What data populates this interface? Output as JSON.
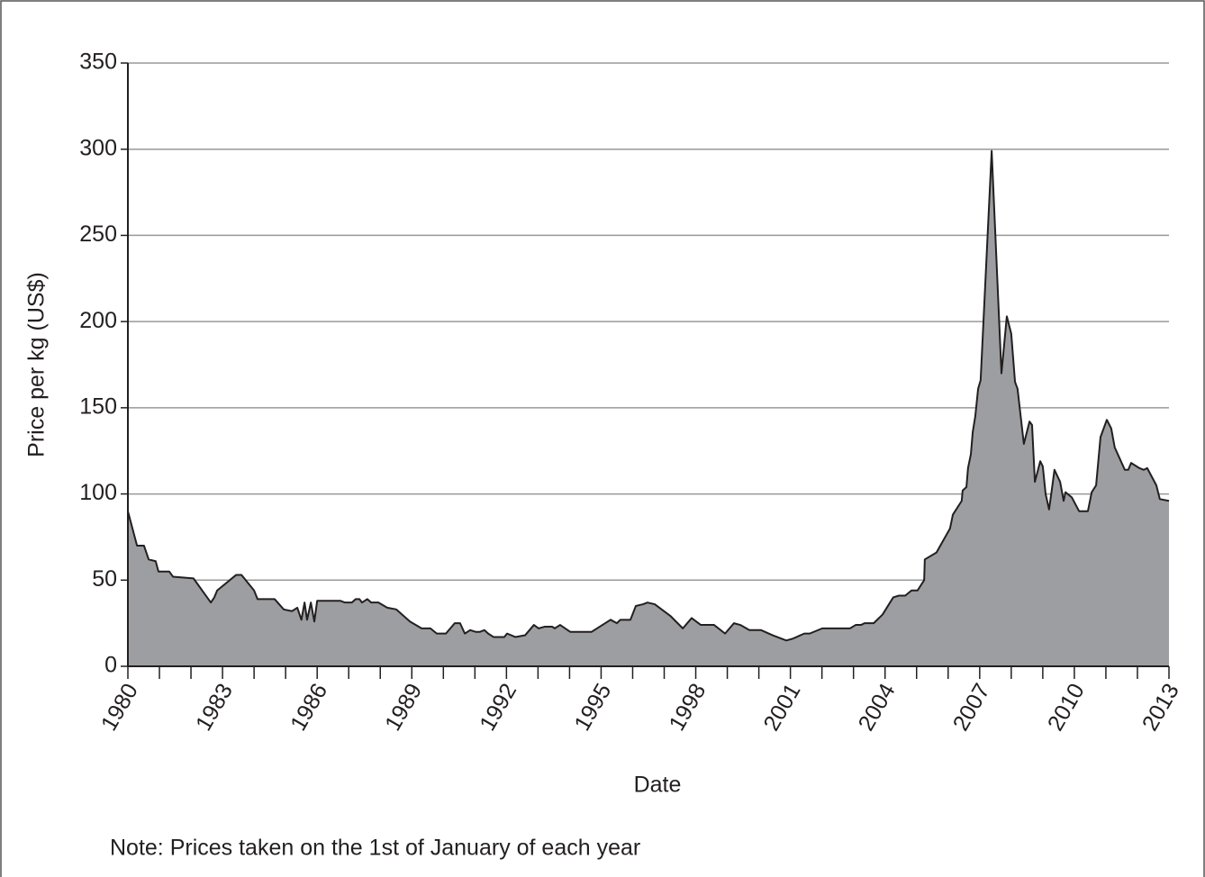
{
  "chart_data": {
    "type": "area",
    "ylabel": "Price per kg (US$)",
    "xlabel": "Date",
    "note": "Note: Prices taken on the 1st of January of each year",
    "x": [
      1980,
      1980.29,
      1980.51,
      1980.66,
      1980.88,
      1980.97,
      1981.31,
      1981.43,
      1982.08,
      1982.63,
      1982.74,
      1982.83,
      1983.43,
      1983.6,
      1984.0,
      1984.11,
      1984.23,
      1984.65,
      1984.94,
      1985.2,
      1985.37,
      1985.5,
      1985.6,
      1985.68,
      1985.8,
      1985.91,
      1986.0,
      1986.74,
      1986.88,
      1987.1,
      1987.22,
      1987.34,
      1987.42,
      1987.59,
      1987.71,
      1987.94,
      1988.22,
      1988.51,
      1988.94,
      1989.31,
      1989.59,
      1989.79,
      1990.08,
      1990.36,
      1990.53,
      1990.68,
      1990.85,
      1991.02,
      1991.16,
      1991.3,
      1991.42,
      1991.59,
      1991.93,
      1992.02,
      1992.28,
      1992.59,
      1992.87,
      1993.02,
      1993.22,
      1993.45,
      1993.53,
      1993.7,
      1994.02,
      1994.7,
      1995.3,
      1995.5,
      1995.61,
      1995.93,
      1996.1,
      1996.33,
      1996.47,
      1996.7,
      1997.21,
      1997.59,
      1997.87,
      1998.16,
      1998.58,
      1998.93,
      1999.21,
      1999.41,
      1999.7,
      2000.07,
      2000.44,
      2000.87,
      2001.07,
      2001.44,
      2001.61,
      2002.01,
      2002.89,
      2003.07,
      2003.24,
      2003.35,
      2003.64,
      2003.92,
      2004.26,
      2004.44,
      2004.64,
      2004.84,
      2005.03,
      2005.24,
      2005.26,
      2005.63,
      2006.06,
      2006.15,
      2006.43,
      2006.46,
      2006.58,
      2006.63,
      2006.72,
      2006.78,
      2006.86,
      2006.95,
      2007.03,
      2007.38,
      2007.69,
      2007.86,
      2008.0,
      2008.12,
      2008.2,
      2008.4,
      2008.58,
      2008.66,
      2008.75,
      2008.92,
      2009.0,
      2009.09,
      2009.2,
      2009.29,
      2009.37,
      2009.55,
      2009.66,
      2009.72,
      2009.92,
      2010.15,
      2010.43,
      2010.55,
      2010.69,
      2010.83,
      2011.03,
      2011.17,
      2011.28,
      2011.6,
      2011.71,
      2011.8,
      2012.06,
      2012.2,
      2012.31,
      2012.6,
      2012.71,
      2013.0
    ],
    "values": [
      90,
      70,
      70,
      62,
      61,
      55,
      55,
      52,
      51,
      37,
      40,
      44,
      53,
      53,
      44,
      39,
      39,
      39,
      33,
      32,
      34,
      27,
      37,
      27,
      37,
      26,
      38,
      38,
      37,
      37,
      39,
      39,
      37,
      39,
      37,
      37,
      34,
      33,
      26,
      22,
      22,
      19,
      19,
      25,
      25,
      19,
      21,
      20,
      20,
      21,
      19,
      17,
      17,
      19,
      17,
      18,
      24,
      22,
      23,
      23,
      22,
      24,
      20,
      20,
      27,
      25,
      27,
      27,
      35,
      36,
      37,
      36,
      29,
      22,
      28,
      24,
      24,
      19,
      25,
      24,
      21,
      21,
      18,
      15,
      16,
      19,
      19,
      22,
      22,
      24,
      24,
      25,
      25,
      30,
      40,
      41,
      41,
      44,
      44,
      50,
      62,
      66,
      80,
      88,
      96,
      102,
      104,
      115,
      123,
      136,
      145,
      161,
      166,
      299,
      170,
      203,
      193,
      165,
      161,
      129,
      142,
      140,
      107,
      119,
      116,
      100,
      91,
      103,
      114,
      107,
      96,
      101,
      98,
      90,
      90,
      101,
      105,
      133,
      143,
      138,
      127,
      114,
      114,
      118,
      115,
      114,
      115,
      105,
      97,
      96
    ],
    "color": "#9d9ea1",
    "xlim": [
      1980,
      2013
    ],
    "ylim": [
      0,
      350
    ],
    "xticks": [
      1980,
      1983,
      1986,
      1989,
      1992,
      1995,
      1998,
      2001,
      2004,
      2007,
      2010,
      2013
    ],
    "x_minor_ticks": [
      1981,
      1982,
      1984,
      1985,
      1987,
      1988,
      1990,
      1991,
      1993,
      1994,
      1996,
      1997,
      1999,
      2000,
      2002,
      2003,
      2005,
      2006,
      2008,
      2009,
      2011,
      2012
    ],
    "yticks": [
      0,
      50,
      100,
      150,
      200,
      250,
      300,
      350
    ],
    "grid": true
  }
}
